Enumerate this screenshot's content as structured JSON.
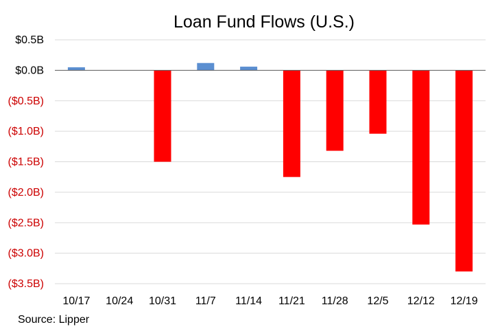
{
  "chart_data": {
    "type": "bar",
    "title": "Loan Fund Flows (U.S.)",
    "xlabel": "",
    "ylabel": "",
    "categories": [
      "10/17",
      "10/24",
      "10/31",
      "11/7",
      "11/14",
      "11/21",
      "11/28",
      "12/5",
      "12/12",
      "12/19"
    ],
    "values": [
      0.05,
      0.0,
      -1.5,
      0.12,
      0.06,
      -1.75,
      -1.32,
      -1.04,
      -2.53,
      -3.3
    ],
    "ylim": [
      -3.5,
      0.5
    ],
    "yticks": [
      0.5,
      0.0,
      -0.5,
      -1.0,
      -1.5,
      -2.0,
      -2.5,
      -3.0,
      -3.5
    ],
    "ytick_labels": [
      "$0.5B",
      "$0.0B",
      "($0.5B)",
      "($1.0B)",
      "($1.5B)",
      "($2.0B)",
      "($2.5B)",
      "($3.0B)",
      "($3.5B)"
    ],
    "grid": true,
    "legend": "none"
  },
  "colors": {
    "positive_bar": "#5b8fd1",
    "negative_bar": "#ff0000",
    "positive_tick": "#000000",
    "negative_tick": "#cc0000",
    "gridline": "#d9d9d9",
    "zero_line": "#595959"
  },
  "source": "Source: Lipper"
}
